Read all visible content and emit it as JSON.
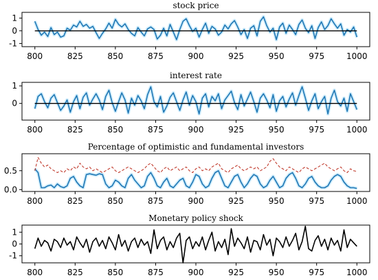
{
  "chart_data": [
    {
      "type": "line",
      "title": "stock price",
      "xlabel": "",
      "ylabel": "",
      "xlim": [
        792,
        1008
      ],
      "ylim": [
        -1.25,
        1.45
      ],
      "xticks": [
        "800",
        "825",
        "850",
        "875",
        "900",
        "925",
        "950",
        "975",
        "1000"
      ],
      "yticks": [
        "-1",
        "0",
        "1"
      ],
      "grid": false,
      "colors": {
        "main": "#1f77b4",
        "band": "#a9def9",
        "reference": "#000000"
      },
      "x_start": 800,
      "x_step": 2,
      "series": [
        {
          "values": [
            0.75,
            0.1,
            -0.35,
            -0.1,
            -0.45,
            0.25,
            -0.3,
            -0.1,
            -0.5,
            -0.4,
            0.2,
            0.05,
            0.45,
            0.3,
            0.75,
            0.35,
            0.5,
            0.2,
            0.35,
            -0.15,
            -0.6,
            -0.2,
            0.15,
            0.6,
            0.2,
            0.9,
            0.5,
            0.3,
            0.55,
            0.1,
            -0.2,
            -0.4,
            0.25,
            -0.1,
            -0.4,
            0.15,
            0.3,
            0.1,
            -0.65,
            -0.35,
            0.2,
            -0.4,
            0.5,
            -0.1,
            -0.7,
            0.1,
            0.75,
            0.95,
            0.4,
            -0.05,
            0.2,
            -0.5,
            0.1,
            0.6,
            -0.2,
            0.35,
            0.15,
            -0.35,
            -0.1,
            0.45,
            0.15,
            0.55,
            0.8,
            0.3,
            -0.3,
            0.1,
            -0.6,
            0.2,
            0.4,
            -0.4,
            0.75,
            1.1,
            0.4,
            -0.1,
            0.2,
            -0.7,
            0.3,
            0.6,
            -0.2,
            0.45,
            0.1,
            -0.3,
            0.5,
            0.85,
            0.2,
            -0.15,
            0.4,
            -0.6,
            0.25,
            0.7,
            0.1,
            0.4,
            0.95,
            0.55,
            0.2,
            0.55,
            -0.35,
            0.1,
            -0.1,
            0.3,
            -0.5
          ]
        },
        {
          "values": [
            0,
            0,
            0,
            0,
            0,
            0,
            0,
            0,
            0,
            0,
            0,
            0,
            0,
            0,
            0,
            0,
            0,
            0,
            0,
            0,
            0,
            0,
            0,
            0,
            0,
            0,
            0,
            0,
            0,
            0,
            0,
            0,
            0,
            0,
            0,
            0,
            0,
            0,
            0,
            0,
            0,
            0,
            0,
            0,
            0,
            0,
            0,
            0,
            0,
            0,
            0,
            0,
            0,
            0,
            0,
            0,
            0,
            0,
            0,
            0,
            0,
            0,
            0,
            0,
            0,
            0,
            0,
            0,
            0,
            0,
            0,
            0,
            0,
            0,
            0,
            0,
            0,
            0,
            0,
            0,
            0,
            0,
            0,
            0,
            0,
            0,
            0,
            0,
            0,
            0,
            0,
            0,
            0,
            0,
            0,
            0,
            0,
            0,
            0,
            0,
            0
          ]
        }
      ]
    },
    {
      "type": "line",
      "title": "interest rate",
      "xlabel": "",
      "ylabel": "",
      "xlim": [
        792,
        1008
      ],
      "ylim": [
        -0.95,
        1.2
      ],
      "xticks": [
        "800",
        "825",
        "850",
        "875",
        "900",
        "925",
        "950",
        "975",
        "1000"
      ],
      "yticks": [
        "0",
        "1"
      ],
      "grid": false,
      "colors": {
        "main": "#1f77b4",
        "band": "#a9def9",
        "reference": "#000000"
      },
      "x_start": 800,
      "x_step": 2,
      "series": [
        {
          "values": [
            -0.3,
            0.4,
            0.55,
            0.1,
            -0.25,
            0.3,
            0.5,
            0.05,
            -0.4,
            -0.15,
            0.2,
            -0.5,
            0.1,
            0.45,
            -0.3,
            0.35,
            0.6,
            -0.1,
            0.25,
            0.55,
            0.2,
            -0.35,
            0.4,
            0.75,
            0.05,
            -0.45,
            0.1,
            0.6,
            0.2,
            -0.55,
            0.3,
            -0.1,
            0.45,
            0.15,
            -0.3,
            0.5,
            0.95,
            0.1,
            -0.2,
            0.4,
            -0.5,
            -0.15,
            0.35,
            0.6,
            0.1,
            -0.4,
            0.2,
            0.65,
            -0.1,
            0.45,
            0.1,
            -0.6,
            0.3,
            0.55,
            -0.2,
            0.4,
            0.15,
            0.55,
            -0.3,
            0.2,
            0.45,
            0.7,
            0.05,
            -0.35,
            0.5,
            -0.15,
            0.25,
            0.65,
            0.1,
            -0.5,
            0.3,
            0.55,
            0.2,
            -0.25,
            0.5,
            -0.45,
            0.15,
            0.4,
            -0.2,
            0.25,
            0.6,
            -0.1,
            0.45,
            0.95,
            0.3,
            -0.4,
            0.15,
            0.55,
            -0.3,
            0.1,
            0.4,
            -0.6,
            0.3,
            0.75,
            0.1,
            -0.15,
            0.3,
            -0.45,
            0.55,
            0.1,
            -0.35
          ]
        },
        {
          "values": [
            0,
            0,
            0,
            0,
            0,
            0,
            0,
            0,
            0,
            0,
            0,
            0,
            0,
            0,
            0,
            0,
            0,
            0,
            0,
            0,
            0,
            0,
            0,
            0,
            0,
            0,
            0,
            0,
            0,
            0,
            0,
            0,
            0,
            0,
            0,
            0,
            0,
            0,
            0,
            0,
            0,
            0,
            0,
            0,
            0,
            0,
            0,
            0,
            0,
            0,
            0,
            0,
            0,
            0,
            0,
            0,
            0,
            0,
            0,
            0,
            0,
            0,
            0,
            0,
            0,
            0,
            0,
            0,
            0,
            0,
            0,
            0,
            0,
            0,
            0,
            0,
            0,
            0,
            0,
            0,
            0,
            0,
            0,
            0,
            0,
            0,
            0,
            0,
            0,
            0,
            0,
            0,
            0,
            0,
            0,
            0,
            0,
            0,
            0,
            0,
            0
          ]
        }
      ]
    },
    {
      "type": "line",
      "title": "Percentage of optimistic and fundamental investors",
      "xlabel": "",
      "ylabel": "",
      "xlim": [
        792,
        1008
      ],
      "ylim": [
        -0.05,
        0.95
      ],
      "xticks": [
        "800",
        "825",
        "850",
        "875",
        "900",
        "925",
        "950",
        "975",
        "1000"
      ],
      "yticks": [
        "0.0",
        "0.5"
      ],
      "grid": false,
      "colors": {
        "main": "#1f77b4",
        "band": "#a9def9",
        "dashed": "#c0392b"
      },
      "x_start": 800,
      "x_step": 2,
      "series": [
        {
          "style": "solid",
          "values": [
            0.55,
            0.45,
            0.05,
            0.05,
            0.1,
            0.12,
            0.05,
            0.15,
            0.08,
            0.05,
            0.1,
            0.3,
            0.35,
            0.2,
            0.1,
            0.05,
            0.4,
            0.42,
            0.4,
            0.38,
            0.42,
            0.4,
            0.15,
            0.05,
            0.1,
            0.25,
            0.2,
            0.1,
            0.05,
            0.3,
            0.4,
            0.25,
            0.15,
            0.05,
            0.1,
            0.35,
            0.45,
            0.3,
            0.1,
            0.05,
            0.2,
            0.3,
            0.1,
            0.05,
            0.15,
            0.25,
            0.3,
            0.1,
            0.05,
            0.2,
            0.4,
            0.35,
            0.15,
            0.05,
            0.1,
            0.3,
            0.45,
            0.5,
            0.3,
            0.1,
            0.05,
            0.2,
            0.35,
            0.4,
            0.2,
            0.05,
            0.15,
            0.3,
            0.4,
            0.35,
            0.15,
            0.05,
            0.1,
            0.25,
            0.35,
            0.2,
            0.05,
            0.1,
            0.3,
            0.4,
            0.45,
            0.3,
            0.1,
            0.05,
            0.15,
            0.3,
            0.35,
            0.2,
            0.1,
            0.05,
            0.05,
            0.1,
            0.25,
            0.35,
            0.4,
            0.35,
            0.2,
            0.1,
            0.05,
            0.05,
            0.03
          ]
        },
        {
          "style": "dashed",
          "values": [
            0.5,
            0.85,
            0.7,
            0.6,
            0.65,
            0.55,
            0.5,
            0.45,
            0.5,
            0.45,
            0.55,
            0.5,
            0.6,
            0.55,
            0.7,
            0.6,
            0.55,
            0.6,
            0.5,
            0.55,
            0.5,
            0.45,
            0.5,
            0.55,
            0.6,
            0.5,
            0.45,
            0.5,
            0.55,
            0.6,
            0.55,
            0.5,
            0.45,
            0.5,
            0.55,
            0.65,
            0.7,
            0.6,
            0.5,
            0.45,
            0.55,
            0.6,
            0.5,
            0.55,
            0.6,
            0.5,
            0.55,
            0.6,
            0.5,
            0.45,
            0.55,
            0.6,
            0.5,
            0.55,
            0.5,
            0.6,
            0.65,
            0.7,
            0.55,
            0.5,
            0.45,
            0.55,
            0.6,
            0.65,
            0.55,
            0.5,
            0.55,
            0.6,
            0.55,
            0.6,
            0.5,
            0.55,
            0.6,
            0.75,
            0.82,
            0.7,
            0.6,
            0.55,
            0.5,
            0.6,
            0.55,
            0.5,
            0.45,
            0.55,
            0.6,
            0.55,
            0.5,
            0.55,
            0.6,
            0.65,
            0.7,
            0.6,
            0.55,
            0.5,
            0.55,
            0.6,
            0.5,
            0.45,
            0.55,
            0.5,
            0.48
          ]
        }
      ]
    },
    {
      "type": "line",
      "title": "Monetary policy shock",
      "xlabel": "",
      "ylabel": "",
      "xlim": [
        792,
        1008
      ],
      "ylim": [
        -1.6,
        1.6
      ],
      "xticks": [
        "800",
        "825",
        "850",
        "875",
        "900",
        "925",
        "950",
        "975",
        "1000"
      ],
      "yticks": [
        "-1",
        "0",
        "1"
      ],
      "grid": false,
      "colors": {
        "main": "#000000"
      },
      "x_start": 800,
      "x_step": 2,
      "series": [
        {
          "values": [
            -0.4,
            0.5,
            -0.2,
            0.3,
            0.1,
            -0.6,
            0.4,
            0.2,
            -0.3,
            0.5,
            -0.1,
            0.2,
            -0.5,
            0.6,
            0.1,
            -0.3,
            0.4,
            -0.7,
            0.2,
            0.5,
            -0.2,
            0.3,
            -0.4,
            0.6,
            0.1,
            -0.5,
            0.8,
            -0.2,
            0.3,
            -0.6,
            0.2,
            0.5,
            -0.3,
            0.4,
            -0.1,
            0.2,
            -0.8,
            1.2,
            -0.4,
            0.3,
            0.6,
            -0.5,
            0.2,
            -0.3,
            0.5,
            0.9,
            -1.6,
            0.3,
            0.6,
            -0.4,
            0.2,
            -0.2,
            0.6,
            -0.5,
            0.3,
            1.0,
            -0.6,
            0.2,
            -0.3,
            0.4,
            -0.9,
            1.3,
            -0.2,
            0.5,
            0.1,
            -0.4,
            0.6,
            -0.7,
            0.3,
            0.2,
            -0.5,
            0.8,
            -0.1,
            0.4,
            -1.0,
            0.5,
            0.2,
            -0.3,
            0.6,
            -0.2,
            0.3,
            0.9,
            -0.5,
            0.2,
            1.5,
            -0.4,
            -0.6,
            0.3,
            0.7,
            -0.2,
            0.4,
            -0.5,
            0.5,
            -0.1,
            0.3,
            -0.6,
            1.2,
            -0.3,
            0.4,
            0.1,
            -0.2
          ]
        }
      ]
    }
  ]
}
